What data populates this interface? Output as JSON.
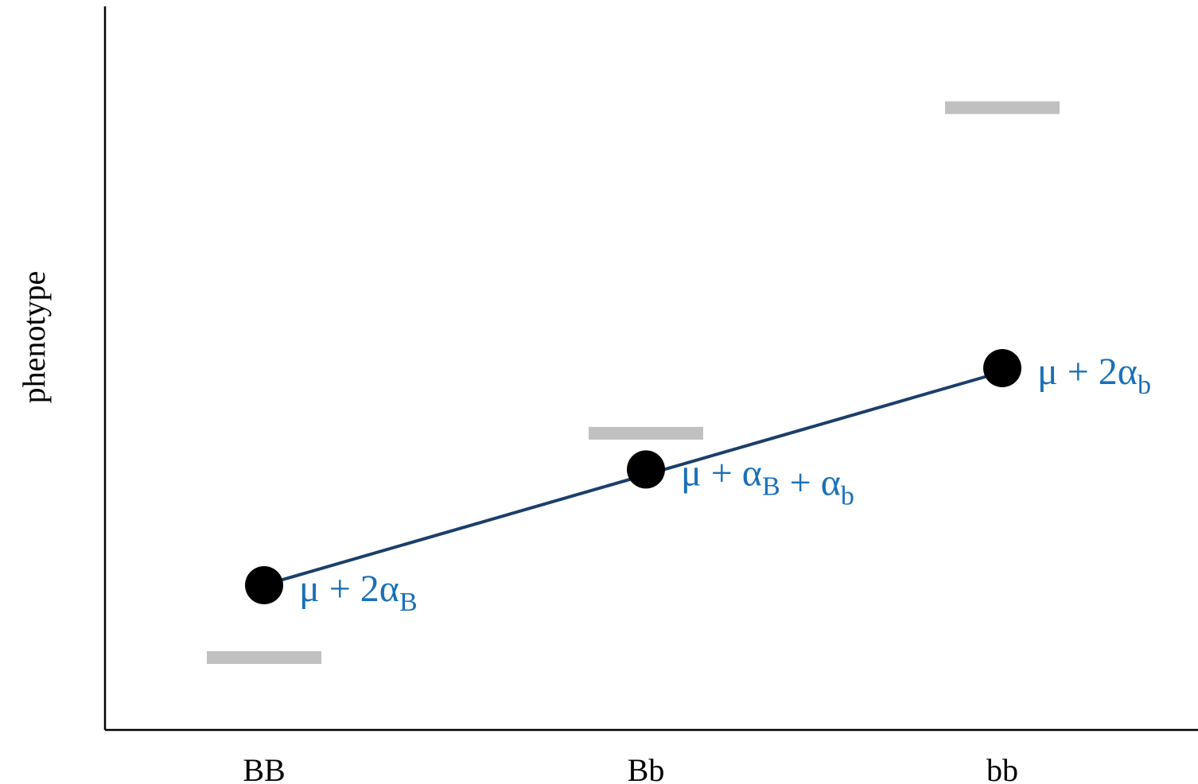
{
  "chart_data": {
    "type": "scatter",
    "ylabel": "phenotype",
    "xlabel": "",
    "categories": [
      "BB",
      "Bb",
      "bb"
    ],
    "x": [
      0,
      1,
      2
    ],
    "ylim": [
      0,
      10
    ],
    "grid": false,
    "legend": "none",
    "series": [
      {
        "kind": "genotypic_means",
        "values": [
          1.0,
          4.1,
          8.6
        ]
      },
      {
        "kind": "additive_fit",
        "values": [
          2.0,
          3.6,
          5.0
        ]
      }
    ],
    "annotations": [
      {
        "category": "BB",
        "main": "μ + 2α",
        "sub": "B"
      },
      {
        "category": "Bb",
        "parts": [
          {
            "main": "μ + α",
            "sub": "B"
          },
          {
            "main": " + α",
            "sub": "b"
          }
        ]
      },
      {
        "category": "bb",
        "main": "μ + 2α",
        "sub": "b"
      }
    ]
  },
  "colors": {
    "axis": "#000000",
    "mean_bar": "#c0c0c0",
    "fit_point": "#000000",
    "fit_line": "#1b3f6b",
    "annotation": "#1a70b8"
  }
}
